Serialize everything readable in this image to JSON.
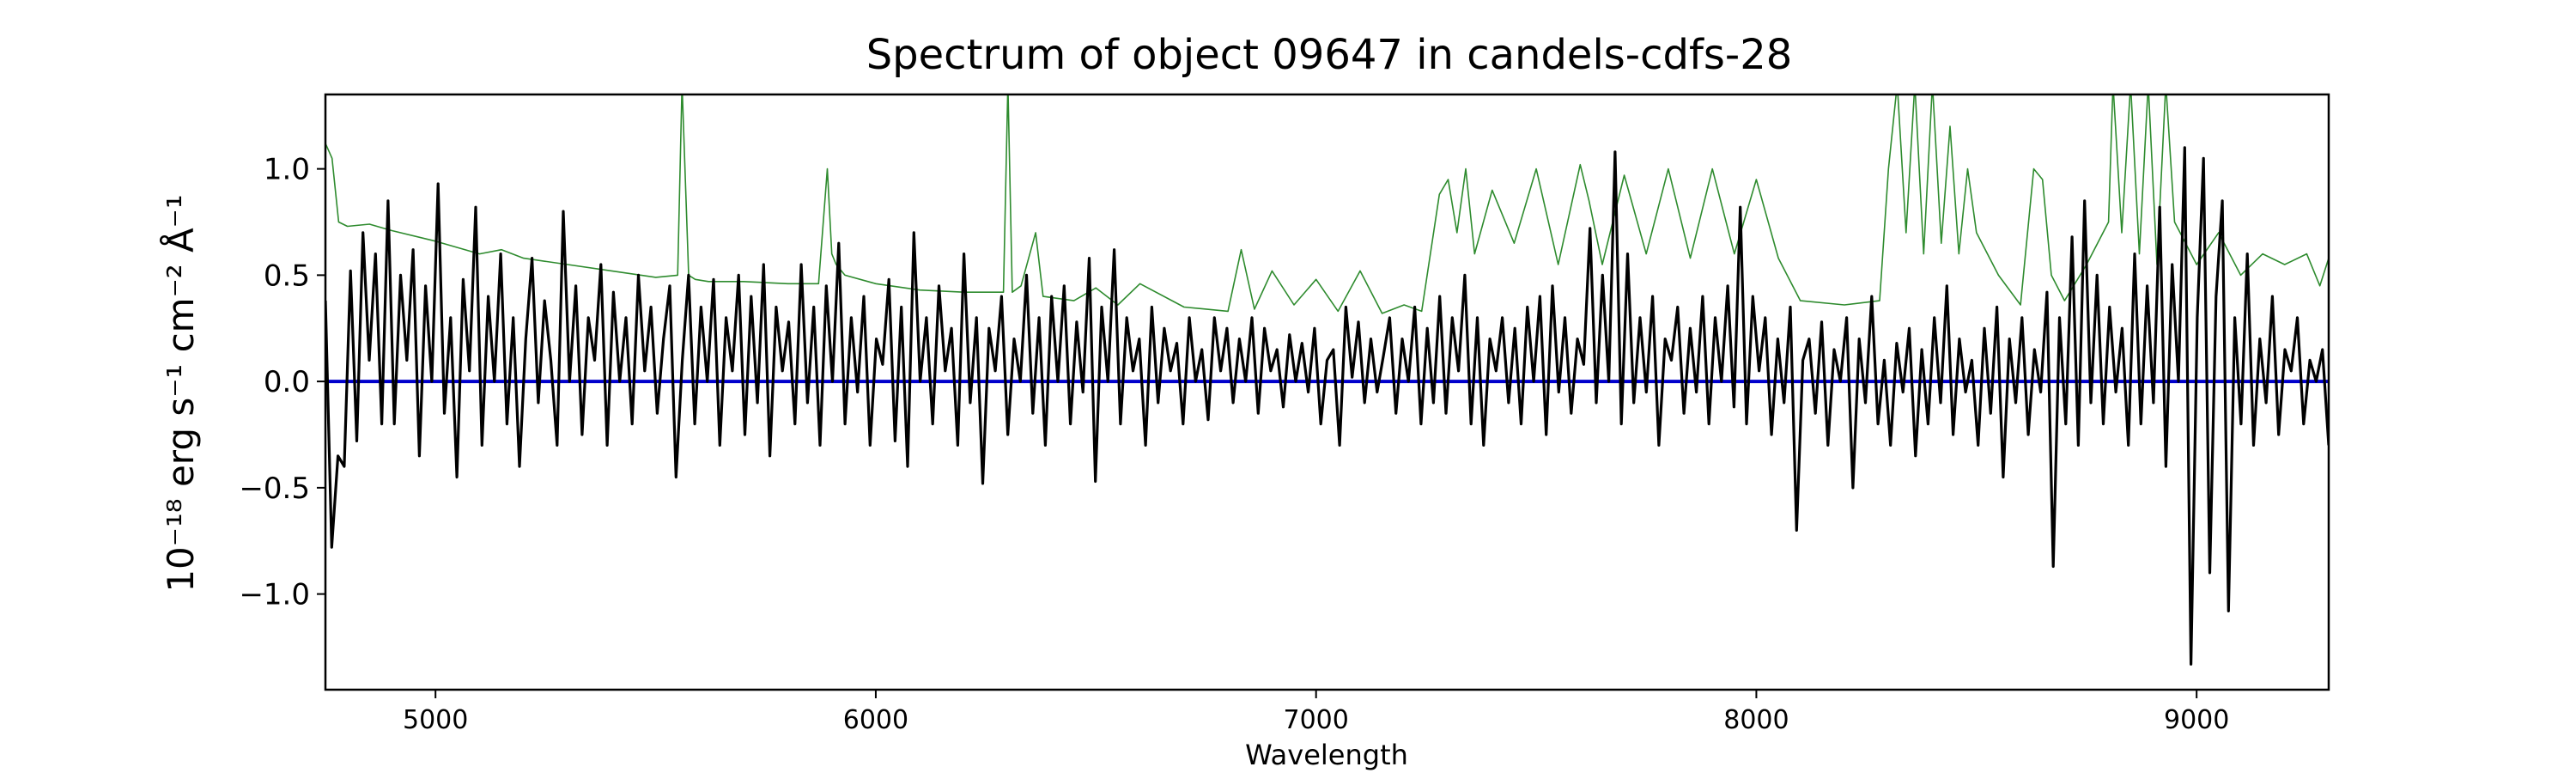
{
  "chart_data": {
    "type": "line",
    "title": "Spectrum of object 09647 in candels-cdfs-28",
    "xlabel": "Wavelength",
    "ylabel": "10⁻¹⁸ erg s⁻¹ cm⁻² Å⁻¹",
    "xlim": [
      4750,
      9300
    ],
    "ylim": [
      -1.45,
      1.35
    ],
    "xticks": [
      5000,
      6000,
      7000,
      8000,
      9000
    ],
    "xtick_labels": [
      "5000",
      "6000",
      "7000",
      "8000",
      "9000"
    ],
    "yticks": [
      -1.0,
      -0.5,
      0.0,
      0.5,
      1.0
    ],
    "ytick_labels": [
      "−1.0",
      "−0.5",
      "0.0",
      "0.5",
      "1.0"
    ],
    "grid": false,
    "series": [
      {
        "role": "error",
        "color": "#2e8b2e",
        "x": [
          4750,
          4765,
          4780,
          4800,
          4850,
          4900,
          5000,
          5100,
          5150,
          5200,
          5300,
          5400,
          5500,
          5550,
          5560,
          5575,
          5590,
          5620,
          5700,
          5800,
          5870,
          5890,
          5900,
          5910,
          5930,
          6000,
          6100,
          6200,
          6250,
          6290,
          6300,
          6310,
          6330,
          6363,
          6380,
          6450,
          6500,
          6550,
          6600,
          6700,
          6800,
          6830,
          6860,
          6900,
          6950,
          7000,
          7050,
          7100,
          7150,
          7200,
          7240,
          7280,
          7300,
          7320,
          7340,
          7360,
          7400,
          7450,
          7500,
          7550,
          7600,
          7620,
          7650,
          7700,
          7750,
          7800,
          7850,
          7900,
          7950,
          8000,
          8050,
          8100,
          8200,
          8280,
          8300,
          8320,
          8340,
          8360,
          8380,
          8400,
          8420,
          8440,
          8460,
          8480,
          8500,
          8550,
          8600,
          8630,
          8650,
          8670,
          8700,
          8750,
          8800,
          8810,
          8830,
          8850,
          8870,
          8890,
          8910,
          8930,
          8950,
          9000,
          9050,
          9100,
          9150,
          9200,
          9250,
          9280,
          9300
        ],
        "values": [
          1.12,
          1.05,
          0.75,
          0.73,
          0.74,
          0.71,
          0.66,
          0.6,
          0.62,
          0.58,
          0.55,
          0.52,
          0.49,
          0.5,
          1.4,
          0.5,
          0.48,
          0.47,
          0.47,
          0.46,
          0.46,
          1.0,
          0.6,
          0.55,
          0.5,
          0.46,
          0.43,
          0.42,
          0.42,
          0.42,
          1.4,
          0.42,
          0.45,
          0.7,
          0.4,
          0.38,
          0.44,
          0.36,
          0.46,
          0.35,
          0.33,
          0.62,
          0.34,
          0.52,
          0.36,
          0.48,
          0.33,
          0.52,
          0.32,
          0.36,
          0.33,
          0.88,
          0.95,
          0.7,
          1.0,
          0.6,
          0.9,
          0.65,
          1.0,
          0.55,
          1.02,
          0.85,
          0.55,
          0.97,
          0.6,
          1.0,
          0.58,
          1.0,
          0.6,
          0.95,
          0.58,
          0.38,
          0.36,
          0.38,
          1.0,
          1.4,
          0.7,
          1.4,
          0.6,
          1.4,
          0.65,
          1.2,
          0.6,
          1.0,
          0.7,
          0.5,
          0.36,
          1.0,
          0.95,
          0.5,
          0.38,
          0.55,
          0.75,
          1.4,
          0.7,
          1.4,
          0.6,
          1.4,
          0.55,
          1.4,
          0.75,
          0.55,
          0.7,
          0.5,
          0.6,
          0.55,
          0.6,
          0.45,
          0.58
        ]
      },
      {
        "role": "model",
        "color": "#0000cc",
        "x": [
          4750,
          9300
        ],
        "values": [
          0.0,
          0.0
        ]
      },
      {
        "role": "flux",
        "color": "#000000",
        "x_start": 4750,
        "x_end": 9300,
        "values": [
          0.38,
          -0.78,
          -0.35,
          -0.4,
          0.52,
          -0.28,
          0.7,
          0.1,
          0.6,
          -0.2,
          0.85,
          -0.2,
          0.5,
          0.1,
          0.62,
          -0.35,
          0.45,
          0.0,
          0.93,
          -0.15,
          0.3,
          -0.45,
          0.48,
          0.05,
          0.82,
          -0.3,
          0.4,
          0.0,
          0.6,
          -0.2,
          0.3,
          -0.4,
          0.2,
          0.58,
          -0.1,
          0.38,
          0.1,
          -0.3,
          0.8,
          0.0,
          0.45,
          -0.25,
          0.3,
          0.1,
          0.55,
          -0.3,
          0.42,
          0.0,
          0.3,
          -0.2,
          0.5,
          0.05,
          0.35,
          -0.15,
          0.2,
          0.45,
          -0.45,
          0.1,
          0.5,
          -0.2,
          0.35,
          0.0,
          0.48,
          -0.3,
          0.3,
          0.05,
          0.5,
          -0.25,
          0.4,
          -0.1,
          0.55,
          -0.35,
          0.35,
          0.05,
          0.28,
          -0.2,
          0.55,
          -0.1,
          0.35,
          -0.3,
          0.45,
          0.0,
          0.65,
          -0.2,
          0.3,
          -0.05,
          0.4,
          -0.3,
          0.2,
          0.08,
          0.48,
          -0.28,
          0.35,
          -0.4,
          0.7,
          0.0,
          0.3,
          -0.2,
          0.45,
          0.05,
          0.25,
          -0.3,
          0.6,
          -0.1,
          0.3,
          -0.48,
          0.25,
          0.05,
          0.4,
          -0.25,
          0.2,
          0.0,
          0.5,
          -0.15,
          0.3,
          -0.3,
          0.4,
          0.0,
          0.45,
          -0.2,
          0.28,
          -0.05,
          0.58,
          -0.47,
          0.35,
          0.0,
          0.62,
          -0.2,
          0.3,
          0.05,
          0.2,
          -0.3,
          0.35,
          -0.1,
          0.25,
          0.05,
          0.18,
          -0.2,
          0.3,
          0.0,
          0.15,
          -0.18,
          0.3,
          0.05,
          0.25,
          -0.1,
          0.2,
          0.0,
          0.3,
          -0.15,
          0.25,
          0.05,
          0.15,
          -0.12,
          0.22,
          0.0,
          0.18,
          -0.05,
          0.25,
          -0.2,
          0.1,
          0.15,
          -0.3,
          0.35,
          0.02,
          0.28,
          -0.1,
          0.2,
          -0.05,
          0.12,
          0.3,
          -0.15,
          0.2,
          0.0,
          0.35,
          -0.2,
          0.25,
          -0.1,
          0.4,
          -0.15,
          0.3,
          0.05,
          0.5,
          -0.2,
          0.3,
          -0.3,
          0.2,
          0.05,
          0.3,
          -0.1,
          0.25,
          -0.2,
          0.35,
          0.0,
          0.4,
          -0.25,
          0.45,
          -0.05,
          0.3,
          -0.15,
          0.2,
          0.08,
          0.72,
          -0.1,
          0.5,
          0.0,
          1.08,
          -0.2,
          0.6,
          -0.1,
          0.3,
          -0.05,
          0.4,
          -0.3,
          0.2,
          0.1,
          0.35,
          -0.15,
          0.25,
          -0.05,
          0.4,
          -0.2,
          0.3,
          0.0,
          0.45,
          -0.12,
          0.82,
          -0.2,
          0.4,
          0.05,
          0.3,
          -0.25,
          0.2,
          -0.1,
          0.35,
          -0.7,
          0.1,
          0.2,
          -0.15,
          0.28,
          -0.3,
          0.15,
          0.0,
          0.3,
          -0.5,
          0.2,
          -0.1,
          0.4,
          -0.2,
          0.1,
          -0.3,
          0.18,
          -0.05,
          0.25,
          -0.35,
          0.15,
          -0.2,
          0.3,
          -0.1,
          0.45,
          -0.25,
          0.2,
          -0.05,
          0.1,
          -0.3,
          0.25,
          -0.15,
          0.35,
          -0.45,
          0.2,
          -0.1,
          0.3,
          -0.25,
          0.15,
          -0.05,
          0.42,
          -0.87,
          0.3,
          -0.2,
          0.68,
          -0.3,
          0.85,
          -0.1,
          0.5,
          -0.2,
          0.35,
          -0.05,
          0.25,
          -0.3,
          0.6,
          -0.2,
          0.45,
          -0.1,
          0.82,
          -0.4,
          0.55,
          0.0,
          1.1,
          -1.33,
          0.3,
          1.05,
          -0.9,
          0.4,
          0.85,
          -1.08,
          0.3,
          -0.2,
          0.6,
          -0.3,
          0.2,
          -0.1,
          0.4,
          -0.25,
          0.15,
          0.05,
          0.3,
          -0.2,
          0.1,
          0.0,
          0.15,
          -0.3
        ]
      }
    ]
  }
}
